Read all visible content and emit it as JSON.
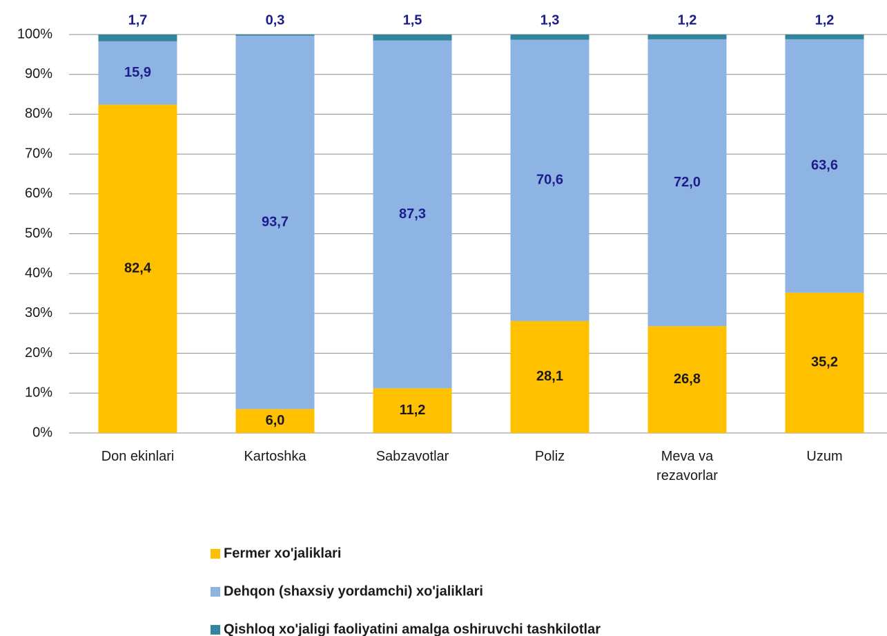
{
  "chart_data": {
    "type": "stacked_bar_100",
    "categories": [
      "Don ekinlari",
      "Kartoshka",
      "Sabzavotlar",
      "Poliz",
      "Meva va rezavorlar",
      "Uzum"
    ],
    "series": [
      {
        "name": "Fermer xo'jaliklari",
        "color": "#ffc000",
        "label_color": "#1a1a1a",
        "values": [
          82.4,
          6.0,
          11.2,
          28.1,
          26.8,
          35.2
        ],
        "value_labels": [
          "82,4",
          "6,0",
          "11,2",
          "28,1",
          "26,8",
          "35,2"
        ]
      },
      {
        "name": "Dehqon (shaxsiy yordamchi) xo'jaliklari",
        "color": "#8eb4e3",
        "label_color": "#1c1c8c",
        "values": [
          15.9,
          93.7,
          87.3,
          70.6,
          72.0,
          63.6
        ],
        "value_labels": [
          "15,9",
          "93,7",
          "87,3",
          "70,6",
          "72,0",
          "63,6"
        ]
      },
      {
        "name": "Qishloq xo'jaligi faoliyatini amalga oshiruvchi tashkilotlar",
        "color": "#31859c",
        "label_color": "#1c1c8c",
        "values": [
          1.7,
          0.3,
          1.5,
          1.3,
          1.2,
          1.2
        ],
        "value_labels": [
          "1,7",
          "0,3",
          "1,5",
          "1,3",
          "1,2",
          "1,2"
        ]
      }
    ],
    "ylim": [
      0,
      100
    ],
    "yticks": [
      {
        "value": 0,
        "label": "0%"
      },
      {
        "value": 10,
        "label": "10%"
      },
      {
        "value": 20,
        "label": "20%"
      },
      {
        "value": 30,
        "label": "30%"
      },
      {
        "value": 40,
        "label": "40%"
      },
      {
        "value": 50,
        "label": "50%"
      },
      {
        "value": 60,
        "label": "60%"
      },
      {
        "value": 70,
        "label": "70%"
      },
      {
        "value": 80,
        "label": "80%"
      },
      {
        "value": 90,
        "label": "90%"
      },
      {
        "value": 100,
        "label": "100%"
      }
    ],
    "grid": true,
    "legend": "bottom"
  }
}
